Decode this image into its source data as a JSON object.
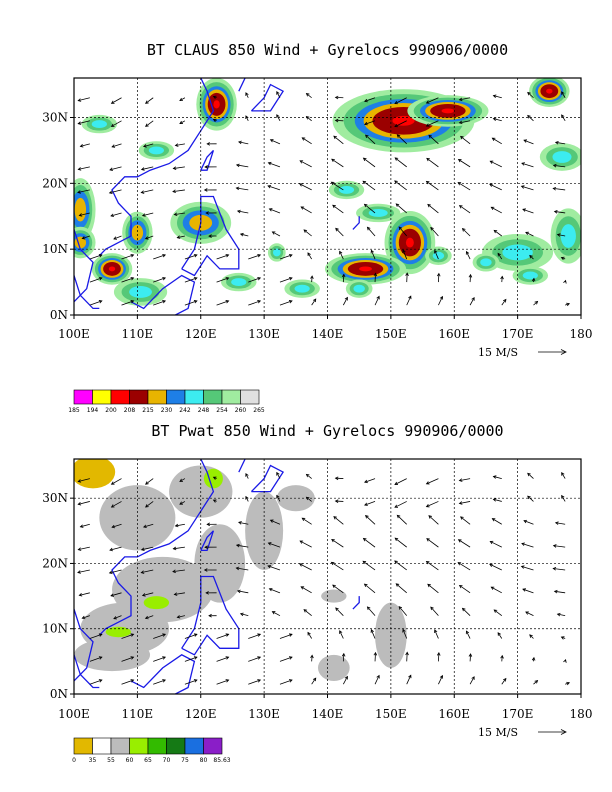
{
  "chart_data": [
    {
      "type": "heatmap",
      "title": "BT CLAUS 850 Wind + Gyrelocs 990906/0000",
      "x_ticks": [
        "100E",
        "110E",
        "120E",
        "130E",
        "140E",
        "150E",
        "160E",
        "170E",
        "180"
      ],
      "y_ticks": [
        "0N",
        "10N",
        "20N",
        "30N"
      ],
      "xlim": [
        100,
        180
      ],
      "ylim": [
        0,
        36
      ],
      "grid": true,
      "grid_x": [
        110,
        120,
        130,
        140,
        150,
        160,
        170
      ],
      "grid_y": [
        10,
        20,
        30
      ],
      "reference_vector": "15 M/S",
      "colorbar_labels": [
        "185",
        "194",
        "200",
        "208",
        "215",
        "230",
        "242",
        "248",
        "254",
        "260",
        "265"
      ],
      "colorbar_colors": [
        "#ff00ff",
        "#ffff00",
        "#ff0000",
        "#9b0000",
        "#e8b400",
        "#1e7fe6",
        "#3cecf0",
        "#55c878",
        "#a0eca0",
        "#e0e0e0"
      ],
      "features": [
        {
          "lon": 122.5,
          "lat": 32,
          "rx": 2,
          "ry": 2.5,
          "level": 3
        },
        {
          "lon": 152,
          "lat": 29.5,
          "rx": 7,
          "ry": 3,
          "level": 3
        },
        {
          "lon": 159,
          "lat": 31,
          "rx": 4,
          "ry": 1.5,
          "level": 3
        },
        {
          "lon": 175,
          "lat": 34,
          "rx": 2,
          "ry": 1.5,
          "level": 3
        },
        {
          "lon": 153,
          "lat": 11,
          "rx": 2.5,
          "ry": 3,
          "level": 3
        },
        {
          "lon": 146,
          "lat": 7,
          "rx": 4,
          "ry": 1.5,
          "level": 3
        },
        {
          "lon": 106,
          "lat": 7,
          "rx": 2,
          "ry": 1.5,
          "level": 3
        },
        {
          "lon": 101,
          "lat": 16,
          "rx": 1.5,
          "ry": 3,
          "level": 2
        },
        {
          "lon": 110,
          "lat": 12.5,
          "rx": 1.5,
          "ry": 2,
          "level": 2
        },
        {
          "lon": 101,
          "lat": 11,
          "rx": 1.5,
          "ry": 1.5,
          "level": 2
        },
        {
          "lon": 120,
          "lat": 14,
          "rx": 3,
          "ry": 2,
          "level": 2
        },
        {
          "lon": 110.5,
          "lat": 3.5,
          "rx": 3,
          "ry": 1.5,
          "level": 1
        },
        {
          "lon": 148,
          "lat": 15.5,
          "rx": 2.5,
          "ry": 1,
          "level": 1
        },
        {
          "lon": 143,
          "lat": 19,
          "rx": 2,
          "ry": 1,
          "level": 1
        },
        {
          "lon": 170,
          "lat": 9.5,
          "rx": 4,
          "ry": 2,
          "level": 1
        },
        {
          "lon": 177,
          "lat": 24,
          "rx": 2.5,
          "ry": 1.5,
          "level": 1
        },
        {
          "lon": 178,
          "lat": 12,
          "rx": 2,
          "ry": 3,
          "level": 1
        },
        {
          "lon": 172,
          "lat": 6,
          "rx": 2,
          "ry": 1,
          "level": 1
        },
        {
          "lon": 165,
          "lat": 8,
          "rx": 1.5,
          "ry": 1,
          "level": 1
        },
        {
          "lon": 104,
          "lat": 29,
          "rx": 2,
          "ry": 1,
          "level": 1
        },
        {
          "lon": 113,
          "lat": 25,
          "rx": 2,
          "ry": 1,
          "level": 1
        },
        {
          "lon": 136,
          "lat": 4,
          "rx": 2,
          "ry": 1,
          "level": 1
        },
        {
          "lon": 132,
          "lat": 9.5,
          "rx": 1,
          "ry": 1,
          "level": 1
        },
        {
          "lon": 157.5,
          "lat": 9,
          "rx": 1.5,
          "ry": 1,
          "level": 1
        },
        {
          "lon": 126,
          "lat": 5,
          "rx": 2,
          "ry": 1,
          "level": 1
        },
        {
          "lon": 145,
          "lat": 4,
          "rx": 1.5,
          "ry": 1,
          "level": 1
        }
      ]
    },
    {
      "type": "heatmap",
      "title": "BT Pwat 850 Wind + Gyrelocs 990906/0000",
      "x_ticks": [
        "100E",
        "110E",
        "120E",
        "130E",
        "140E",
        "150E",
        "160E",
        "170E",
        "180"
      ],
      "y_ticks": [
        "0N",
        "10N",
        "20N",
        "30N"
      ],
      "xlim": [
        100,
        180
      ],
      "ylim": [
        0,
        36
      ],
      "grid": true,
      "grid_x": [
        110,
        120,
        130,
        140,
        150,
        160,
        170
      ],
      "grid_y": [
        10,
        20,
        30
      ],
      "reference_vector": "15 M/S",
      "colorbar_labels": [
        "0",
        "35",
        "55",
        "60",
        "65",
        "70",
        "75",
        "80",
        "85.63"
      ],
      "colorbar_colors": [
        "#e2b800",
        "#ffffff",
        "#bcbcbc",
        "#99ee00",
        "#33bb00",
        "#157a15",
        "#1a6fe0",
        "#8a1ec8"
      ],
      "features": [
        {
          "lon": 103,
          "lat": 34,
          "rx": 3.5,
          "ry": 2.5,
          "level": 4
        },
        {
          "lon": 110,
          "lat": 27,
          "rx": 6,
          "ry": 5,
          "level": 1
        },
        {
          "lon": 120,
          "lat": 31,
          "rx": 5,
          "ry": 4,
          "level": 1
        },
        {
          "lon": 114,
          "lat": 16,
          "rx": 8,
          "ry": 5,
          "level": 1
        },
        {
          "lon": 108,
          "lat": 10,
          "rx": 7,
          "ry": 4,
          "level": 1
        },
        {
          "lon": 106,
          "lat": 6,
          "rx": 6,
          "ry": 2.5,
          "level": 1
        },
        {
          "lon": 123,
          "lat": 20,
          "rx": 4,
          "ry": 6,
          "level": 1
        },
        {
          "lon": 130,
          "lat": 25,
          "rx": 3,
          "ry": 6,
          "level": 1
        },
        {
          "lon": 150,
          "lat": 9,
          "rx": 2.5,
          "ry": 5,
          "level": 1
        },
        {
          "lon": 141,
          "lat": 4,
          "rx": 2.5,
          "ry": 2,
          "level": 1
        },
        {
          "lon": 141,
          "lat": 15,
          "rx": 2,
          "ry": 1,
          "level": 1
        },
        {
          "lon": 135,
          "lat": 30,
          "rx": 3,
          "ry": 2,
          "level": 1
        },
        {
          "lon": 122,
          "lat": 33,
          "rx": 1.5,
          "ry": 1.5,
          "level": 2
        },
        {
          "lon": 113,
          "lat": 14,
          "rx": 2,
          "ry": 1,
          "level": 2
        },
        {
          "lon": 107,
          "lat": 9.5,
          "rx": 2,
          "ry": 0.8,
          "level": 2
        }
      ]
    }
  ]
}
